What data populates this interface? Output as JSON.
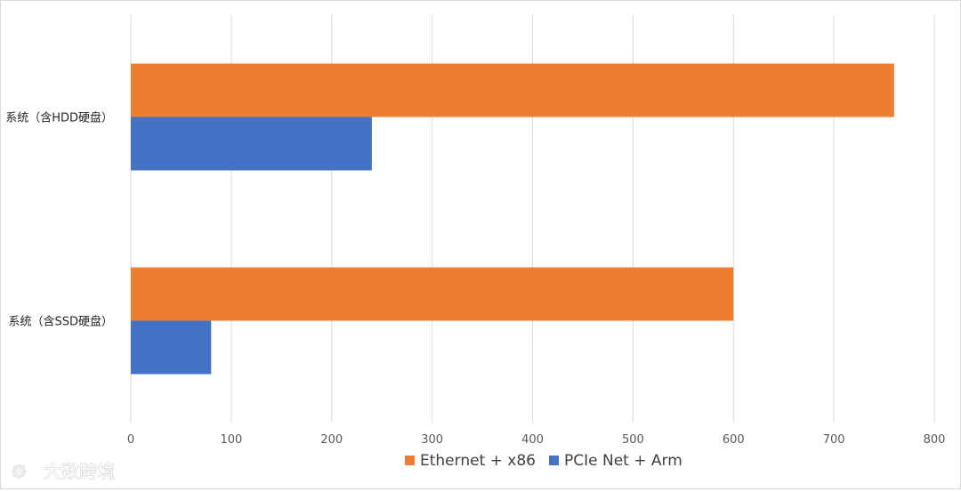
{
  "chart_data": {
    "type": "bar",
    "orientation": "horizontal",
    "categories": [
      "系统（含HDD硬盘）",
      "系统（含SSD硬盘）"
    ],
    "series": [
      {
        "name": "Ethernet + x86",
        "color": "#ED7D31",
        "values": [
          760,
          600
        ]
      },
      {
        "name": "PCIe Net + Arm",
        "color": "#4472C4",
        "values": [
          240,
          80
        ]
      }
    ],
    "xlim": [
      0,
      800
    ],
    "xticks": [
      "0",
      "100",
      "200",
      "300",
      "400",
      "500",
      "600",
      "700",
      "800"
    ],
    "grid": true,
    "legend_position": "bottom"
  },
  "watermark": {
    "text": "大数跨境"
  }
}
